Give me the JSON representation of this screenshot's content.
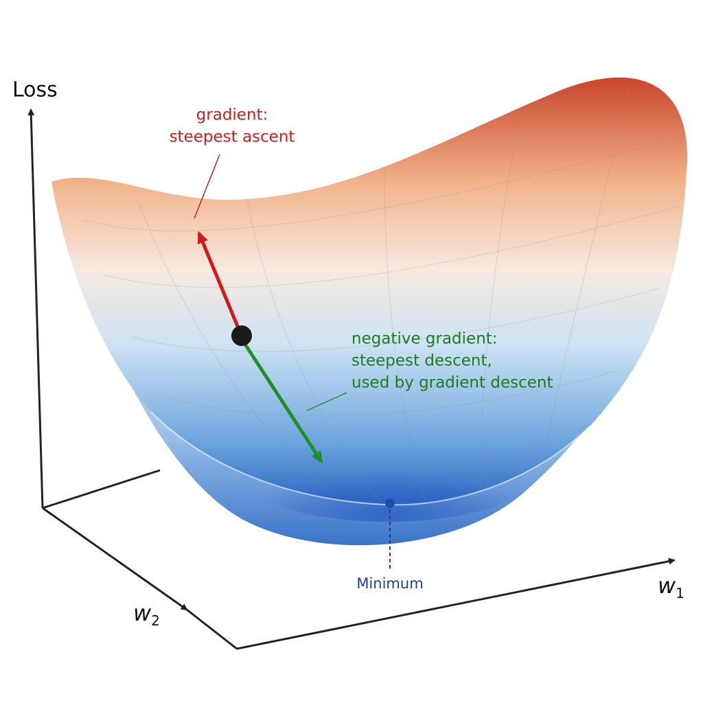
{
  "axes": {
    "loss": "Loss",
    "w1": {
      "main": "w",
      "sub": "1"
    },
    "w2": {
      "main": "w",
      "sub": "2"
    }
  },
  "annotations": {
    "gradient": {
      "lines": [
        "gradient:",
        "steepest ascent"
      ]
    },
    "negative_gradient": {
      "lines": [
        "negative gradient:",
        "steepest descent,",
        "used by gradient descent"
      ]
    },
    "minimum": "Minimum"
  }
}
